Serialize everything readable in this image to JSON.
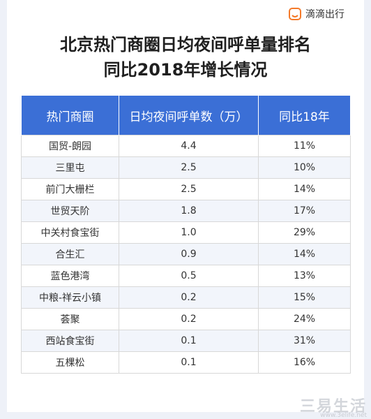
{
  "brand": {
    "name": "滴滴出行",
    "icon": "didi-logo-icon",
    "color": "#f47a2a"
  },
  "title": {
    "line1": "北京热门商圈日均夜间呼单量排名",
    "line2": "同比2018年增长情况"
  },
  "table": {
    "header_color": "#3b6fd6",
    "headers": [
      "热门商圈",
      "日均夜间呼单数（万）",
      "同比18年"
    ],
    "rows": [
      [
        "国贸-朗园",
        "4.4",
        "11%"
      ],
      [
        "三里屯",
        "2.5",
        "10%"
      ],
      [
        "前门大栅栏",
        "2.5",
        "14%"
      ],
      [
        "世贸天阶",
        "1.8",
        "17%"
      ],
      [
        "中关村食宝街",
        "1.0",
        "29%"
      ],
      [
        "合生汇",
        "0.9",
        "14%"
      ],
      [
        "蓝色港湾",
        "0.5",
        "13%"
      ],
      [
        "中粮-祥云小镇",
        "0.2",
        "15%"
      ],
      [
        "荟聚",
        "0.2",
        "24%"
      ],
      [
        "西站食宝街",
        "0.1",
        "31%"
      ],
      [
        "五棵松",
        "0.1",
        "16%"
      ]
    ]
  },
  "watermark": {
    "text": "三易生活",
    "sub": "www.3elife.net"
  }
}
